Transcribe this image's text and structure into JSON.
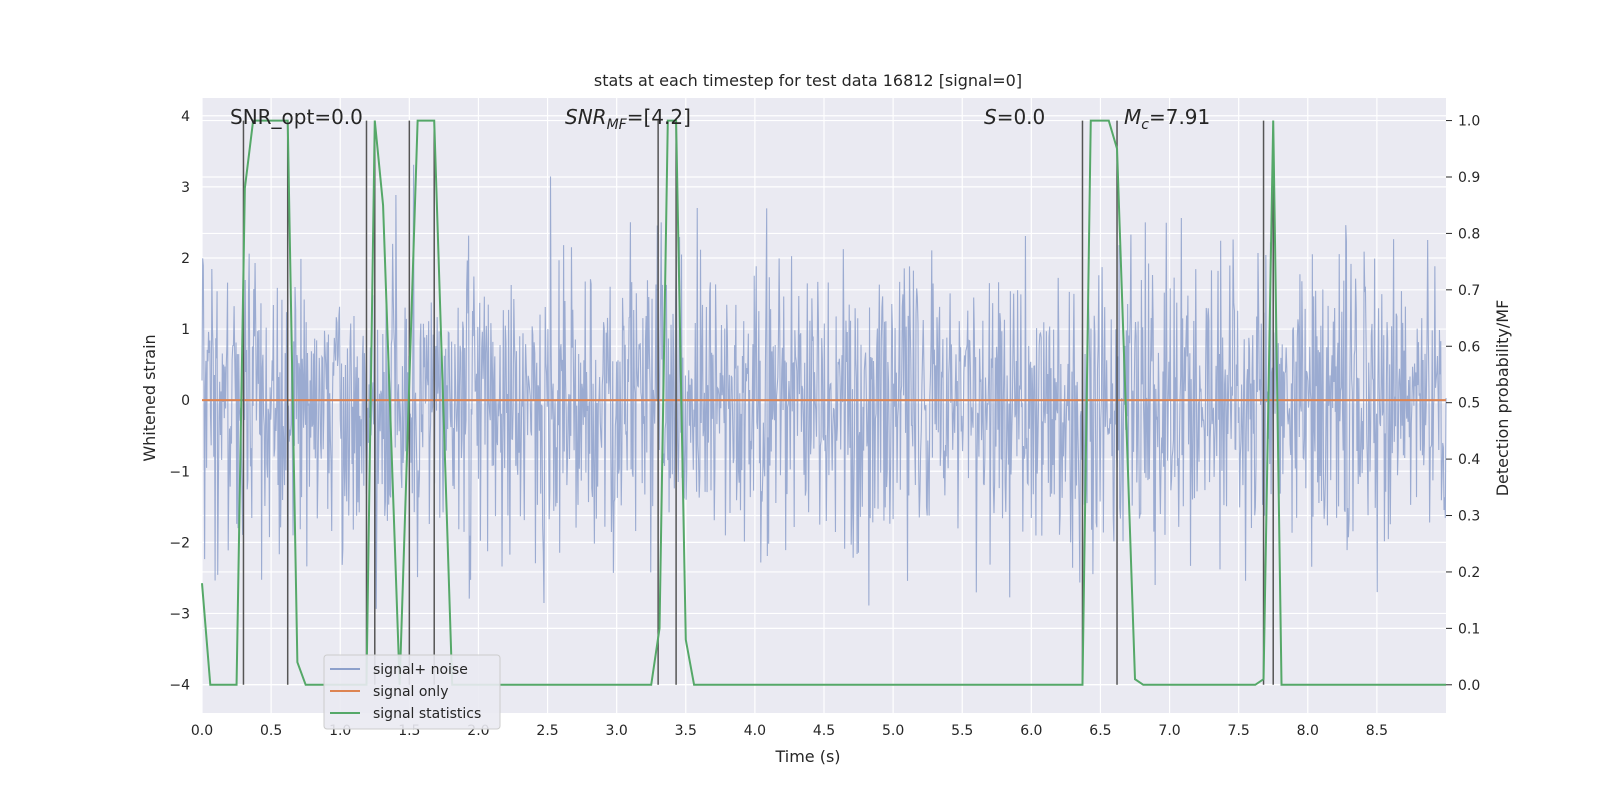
{
  "chart_data": {
    "type": "line",
    "title": "stats at each timestep for test data 16812 [signal=0]",
    "xlabel": "Time (s)",
    "ylabel": "Whitened strain",
    "y2label": "Detection probability/MF",
    "xlim": [
      0,
      9
    ],
    "ylim": [
      -4.4,
      4.25
    ],
    "y2lim": [
      -0.05,
      1.04
    ],
    "xticks": [
      0.0,
      0.5,
      1.0,
      1.5,
      2.0,
      2.5,
      3.0,
      3.5,
      4.0,
      4.5,
      5.0,
      5.5,
      6.0,
      6.5,
      7.0,
      7.5,
      8.0,
      8.5
    ],
    "xtick_labels": [
      "0.0",
      "0.5",
      "1.0",
      "1.5",
      "2.0",
      "2.5",
      "3.0",
      "3.5",
      "4.0",
      "4.5",
      "5.0",
      "5.5",
      "6.0",
      "6.5",
      "7.0",
      "7.5",
      "8.0",
      "8.5"
    ],
    "yticks": [
      -4,
      -3,
      -2,
      -1,
      0,
      1,
      2,
      3,
      4
    ],
    "ytick_labels": [
      "−4",
      "−3",
      "−2",
      "−1",
      "0",
      "1",
      "2",
      "3",
      "4"
    ],
    "y2ticks": [
      0.0,
      0.1,
      0.2,
      0.3,
      0.4,
      0.5,
      0.6,
      0.7,
      0.8,
      0.9,
      1.0
    ],
    "y2tick_labels": [
      "0.0",
      "0.1",
      "0.2",
      "0.3",
      "0.4",
      "0.5",
      "0.6",
      "0.7",
      "0.8",
      "0.9",
      "1.0"
    ],
    "grid": true,
    "legend_position": "bottom-left",
    "annotations": {
      "snr_opt": "SNR_opt=0.0",
      "snr_mf_name": "SNR",
      "snr_mf_sub": "MF",
      "snr_mf_value": "=[4.2]",
      "s_name": "S",
      "s_value": "=0.0",
      "mc_name": "M",
      "mc_sub": "c",
      "mc_value": "=7.91"
    },
    "series": [
      {
        "name": "signal+ noise",
        "color": "#8da0cb",
        "kind": "noise",
        "seed": 16812,
        "samples": 1900,
        "sigma": 1.0,
        "clip": [
          -3.75,
          3.85
        ],
        "approx_range": [
          -3.75,
          3.8
        ]
      },
      {
        "name": "signal only",
        "color": "#dd8452",
        "x": [
          0.0,
          9.0
        ],
        "y": [
          0.0,
          0.0
        ]
      },
      {
        "name": "signal statistics",
        "color": "#55a868",
        "axis": "y2",
        "x": [
          0.0,
          0.06,
          0.25,
          0.31,
          0.37,
          0.62,
          0.69,
          0.75,
          1.19,
          1.25,
          1.31,
          1.43,
          1.56,
          1.68,
          1.81,
          1.93,
          3.25,
          3.31,
          3.37,
          3.43,
          3.5,
          3.56,
          6.37,
          6.43,
          6.56,
          6.62,
          6.75,
          6.81,
          7.62,
          7.68,
          7.75,
          7.81,
          8.0,
          9.0
        ],
        "y": [
          0.18,
          0.0,
          0.0,
          0.88,
          1.0,
          1.0,
          0.04,
          0.0,
          0.0,
          1.0,
          0.85,
          0.0,
          1.0,
          1.0,
          0.0,
          0.0,
          0.0,
          0.1,
          1.0,
          1.0,
          0.08,
          0.0,
          0.0,
          1.0,
          1.0,
          0.95,
          0.01,
          0.0,
          0.0,
          0.01,
          1.0,
          0.0,
          0.0,
          0.0
        ]
      }
    ],
    "vertical_markers": {
      "color": "#555555",
      "x": [
        0.3,
        0.62,
        1.19,
        1.25,
        1.5,
        1.68,
        3.3,
        3.43,
        6.37,
        6.62,
        7.68,
        7.75
      ]
    }
  }
}
